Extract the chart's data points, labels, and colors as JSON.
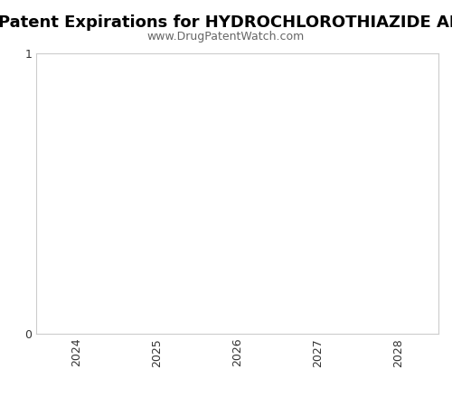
{
  "title": "Patent Expirations for HYDROCHLOROTHIAZIDE AND OLMESARTAN MED",
  "subtitle": "www.DrugPatentWatch.com",
  "title_fontsize": 13,
  "subtitle_fontsize": 9,
  "xlabel": "",
  "ylabel": "",
  "xlim": [
    2023.5,
    2028.5
  ],
  "ylim": [
    0,
    1
  ],
  "yticks": [
    0,
    1
  ],
  "xticks": [
    2024,
    2025,
    2026,
    2027,
    2028
  ],
  "background_color": "#ffffff",
  "plot_bg_color": "#ffffff",
  "spine_color": "#cccccc",
  "tick_color": "#333333",
  "title_color": "#000000",
  "subtitle_color": "#666666",
  "title_weight": "bold",
  "fig_width": 5.0,
  "fig_height": 4.5,
  "dpi": 100
}
